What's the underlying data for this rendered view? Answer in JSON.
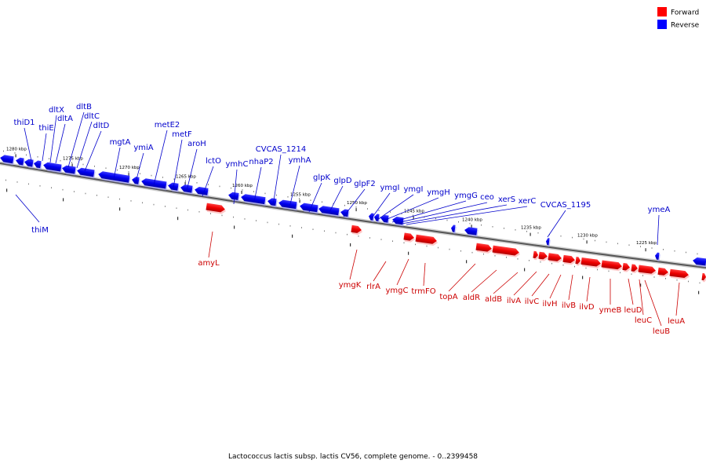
{
  "legend": {
    "forward_label": "Forward",
    "reverse_label": "Reverse",
    "forward_color": "#ff0000",
    "reverse_color": "#0000ff"
  },
  "caption": "Lactococcus lactis subsp. lactis CV56, complete genome. - 0..2399458",
  "kbp_ticks": [
    "1280 kbp",
    "1275 kbp",
    "1270 kbp",
    "1265 kbp",
    "1260 kbp",
    "1255 kbp",
    "1250 kbp",
    "1245 kbp",
    "1240 kbp",
    "1235 kbp",
    "1230 kbp",
    "1225 kbp"
  ],
  "reverse_genes": [
    "thiD1",
    "thiE",
    "dltX",
    "dltA",
    "dltB",
    "dltC",
    "dltD",
    "mgtA",
    "ymiA",
    "metE2",
    "metF",
    "aroH",
    "lctO",
    "ymhC",
    "nhaP2",
    "CVCAS_1214",
    "ymhA",
    "glpK",
    "glpD",
    "glpF2",
    "ymgI",
    "ymgI",
    "ymgH",
    "ymgG",
    "ceo",
    "xerS",
    "xerC",
    "CVCAS_1195",
    "ymeA",
    "thiM"
  ],
  "forward_genes": [
    "amyL",
    "ymgK",
    "rlrA",
    "ymgC",
    "trmFO",
    "topA",
    "aldR",
    "aldB",
    "ilvA",
    "ilvC",
    "ilvH",
    "ilvB",
    "ilvD",
    "ymeB",
    "leuD",
    "leuC",
    "leuB",
    "leuA"
  ]
}
